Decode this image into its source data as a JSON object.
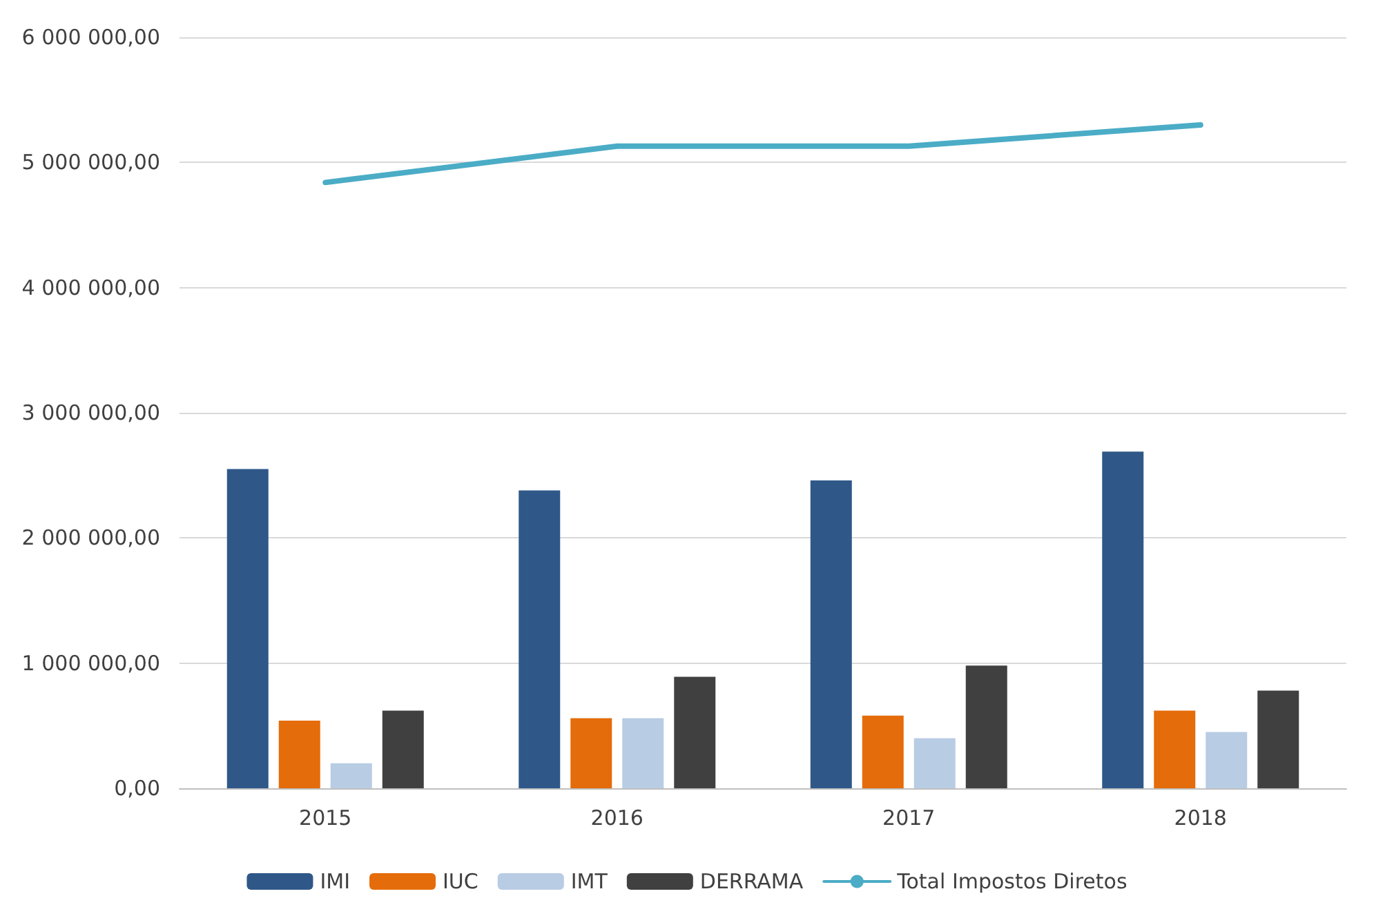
{
  "chart_data": {
    "type": "bar",
    "categories": [
      "2015",
      "2016",
      "2017",
      "2018"
    ],
    "series": [
      {
        "name": "IMI",
        "color": "#2f5889",
        "values": [
          2550000,
          2380000,
          2460000,
          2690000
        ]
      },
      {
        "name": "IUC",
        "color": "#e46c0a",
        "values": [
          540000,
          560000,
          580000,
          620000
        ]
      },
      {
        "name": "IMT",
        "color": "#b8cce4",
        "values": [
          200000,
          560000,
          400000,
          450000
        ]
      },
      {
        "name": "DERRAMA",
        "color": "#404040",
        "values": [
          620000,
          890000,
          980000,
          780000
        ]
      },
      {
        "name": "Total Impostos Diretos",
        "type": "line",
        "color": "#4bacc6",
        "values": [
          4840000,
          5130000,
          5130000,
          5300000
        ]
      }
    ],
    "ylim": [
      0,
      6000000
    ],
    "yticks": [
      {
        "value": 0,
        "label": "0,00"
      },
      {
        "value": 1000000,
        "label": "1 000 000,00"
      },
      {
        "value": 2000000,
        "label": "2 000 000,00"
      },
      {
        "value": 3000000,
        "label": "3 000 000,00"
      },
      {
        "value": 4000000,
        "label": "4 000 000,00"
      },
      {
        "value": 5000000,
        "label": "5 000 000,00"
      },
      {
        "value": 6000000,
        "label": "6 000 000,00"
      }
    ],
    "grid": "y",
    "legend": "bottom",
    "marker": "none",
    "line_style": "solid"
  }
}
